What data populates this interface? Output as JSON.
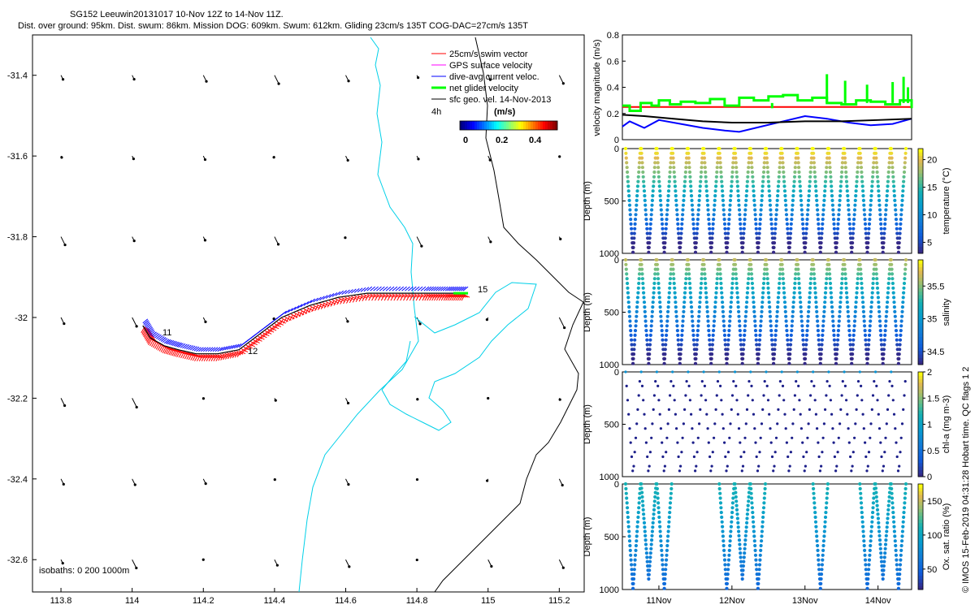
{
  "header": {
    "title_line1": "SG152 Leeuwin20131017 10-Nov 12Z to 14-Nov 11Z.",
    "title_line2": "Dist. over ground: 95km. Dist. swum: 86km. Mission DOG: 609km. Swum: 612km. Gliding 23cm/s 135T COG-DAC=27cm/s 135T"
  },
  "credit": "© IMOS 15-Feb-2019 04:31:28 Hobart time. QC flags 1  2",
  "chart_data": [
    {
      "type": "map",
      "name": "glider-track-map",
      "xlim": [
        113.72,
        115.27
      ],
      "ylim": [
        -32.68,
        -31.3
      ],
      "x_ticks": [
        113.8,
        114,
        114.2,
        114.4,
        114.6,
        114.8,
        115,
        115.2
      ],
      "y_ticks": [
        -31.4,
        -31.6,
        -31.8,
        -32,
        -32.2,
        -32.4,
        -32.6
      ],
      "legend": {
        "items": [
          {
            "label": "25cm/s swim vector",
            "color": "#ff0000"
          },
          {
            "label": "GPS surface velocity",
            "color": "#ff00ff"
          },
          {
            "label": "dive-avg current veloc.",
            "color": "#0000ff"
          },
          {
            "label": "net glider velocity",
            "color": "#00ff00"
          },
          {
            "label": "sfc geo. vel. 14-Nov-2013",
            "color": "#000000"
          }
        ],
        "scale_label": "4h",
        "colorbar_title": "(m/s)",
        "colorbar_ticks": [
          "0",
          "0.2",
          "0.4"
        ]
      },
      "day_labels": [
        "11",
        "12",
        "15"
      ],
      "isobath_label": "isobaths: 0   200  1000m",
      "track": {
        "lon": [
          114.03,
          114.05,
          114.09,
          114.13,
          114.18,
          114.24,
          114.3,
          114.36,
          114.42,
          114.5,
          114.58,
          114.66,
          114.74,
          114.82,
          114.88,
          114.93
        ],
        "lat": [
          -32.02,
          -32.05,
          -32.07,
          -32.08,
          -32.09,
          -32.09,
          -32.08,
          -32.04,
          -32.0,
          -31.97,
          -31.95,
          -31.94,
          -31.94,
          -31.94,
          -31.94,
          -31.94
        ]
      }
    },
    {
      "type": "line",
      "name": "velocity-magnitude",
      "ylabel": "velocity magnitude (m/s)",
      "ylim": [
        0,
        0.8
      ],
      "y_ticks": [
        "0",
        "0.2",
        "0.4",
        "0.6",
        "0.8"
      ],
      "day_range": [
        10.5,
        14.46
      ],
      "series": [
        {
          "color": "#ff0000",
          "t": [
            10.5,
            14.46
          ],
          "v": [
            0.25,
            0.25
          ]
        },
        {
          "color": "#00ff00",
          "t": [
            10.5,
            10.6,
            10.75,
            10.9,
            11.0,
            11.15,
            11.3,
            11.5,
            11.7,
            11.9,
            12.1,
            12.3,
            12.5,
            12.7,
            12.9,
            13.1,
            13.3,
            13.5,
            13.7,
            13.9,
            14.1,
            14.3,
            14.46
          ],
          "v": [
            0.26,
            0.22,
            0.28,
            0.26,
            0.3,
            0.27,
            0.29,
            0.28,
            0.31,
            0.26,
            0.32,
            0.3,
            0.33,
            0.34,
            0.3,
            0.32,
            0.28,
            0.27,
            0.3,
            0.29,
            0.27,
            0.3,
            0.24
          ]
        },
        {
          "color": "#0000ff",
          "t": [
            10.5,
            10.6,
            10.8,
            11.0,
            11.3,
            11.6,
            11.9,
            12.1,
            12.4,
            12.7,
            13.0,
            13.3,
            13.6,
            13.9,
            14.2,
            14.46
          ],
          "v": [
            0.1,
            0.14,
            0.09,
            0.15,
            0.12,
            0.09,
            0.07,
            0.06,
            0.1,
            0.14,
            0.18,
            0.16,
            0.13,
            0.11,
            0.12,
            0.16
          ]
        },
        {
          "color": "#000000",
          "t": [
            10.5,
            10.8,
            11.2,
            11.6,
            12.0,
            12.5,
            13.0,
            13.5,
            14.0,
            14.46
          ],
          "v": [
            0.19,
            0.18,
            0.16,
            0.14,
            0.13,
            0.13,
            0.14,
            0.14,
            0.15,
            0.16
          ]
        }
      ]
    },
    {
      "type": "scatter",
      "name": "temperature-profile",
      "ylabel": "Depth (m)",
      "colorbar_label": "temperature (°C)",
      "y_ticks": [
        "0",
        "500",
        "1000"
      ],
      "cb_ticks": [
        "5",
        "10",
        "15",
        "20"
      ],
      "cb_range": [
        3,
        22
      ],
      "colormap": "parula",
      "dives": 18
    },
    {
      "type": "scatter",
      "name": "salinity-profile",
      "ylabel": "Depth (m)",
      "colorbar_label": "salinity",
      "y_ticks": [
        "0",
        "500",
        "1000"
      ],
      "cb_ticks": [
        "34.5",
        "35",
        "35.5"
      ],
      "cb_range": [
        34.3,
        35.9
      ],
      "colormap": "parula",
      "dives": 18
    },
    {
      "type": "scatter",
      "name": "chl-a-profile",
      "ylabel": "Depth (m)",
      "colorbar_label": "chl-a (mg m-3)",
      "y_ticks": [
        "0",
        "500",
        "1000"
      ],
      "cb_ticks": [
        "0",
        "0.5",
        "1",
        "1.5",
        "2"
      ],
      "cb_range": [
        0,
        2
      ],
      "colormap": "parula",
      "dives": 18
    },
    {
      "type": "scatter",
      "name": "oxygen-sat-profile",
      "ylabel": "Depth (m)",
      "colorbar_label": "Ox. sat. ratio (%)",
      "y_ticks": [
        "0",
        "500",
        "1000"
      ],
      "cb_ticks": [
        "50",
        "100",
        "150"
      ],
      "cb_range": [
        20,
        175
      ],
      "colormap": "parula",
      "dives": 8
    }
  ],
  "x_date_ticks": [
    "11Nov",
    "12Nov",
    "13Nov",
    "14Nov"
  ],
  "colors": {
    "coast": "#000000",
    "isobath": "#00d0e8",
    "axis": "#000000"
  }
}
